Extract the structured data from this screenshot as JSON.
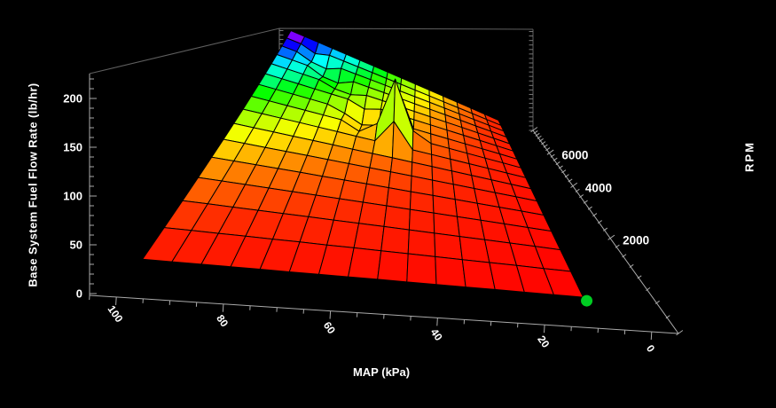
{
  "window": {
    "background": "#000000"
  },
  "chart_data": {
    "type": "surface3d",
    "title": "",
    "x_axis": {
      "label": "MAP (kPa)",
      "major_ticks": [
        100,
        80,
        60,
        40,
        20,
        0
      ],
      "minor_step_kpa": 5,
      "range_kpa": [
        0,
        105
      ]
    },
    "y_axis": {
      "label": "RPM",
      "major_ticks": [
        2000,
        4000,
        6000
      ],
      "minor_step_rpm": 250,
      "range_rpm": [
        0,
        8000
      ]
    },
    "z_axis": {
      "label": "Base System Fuel Flow Rate (lb/hr)",
      "major_ticks": [
        0,
        50,
        100,
        150,
        200
      ],
      "minor_step": 10,
      "range": [
        0,
        225
      ]
    },
    "map_values": [
      10,
      16,
      22,
      28,
      34,
      40,
      46,
      52,
      58,
      64,
      70,
      76,
      82,
      88,
      94,
      100
    ],
    "rpm_values": [
      500,
      1000,
      1500,
      2000,
      2500,
      3000,
      3500,
      4000,
      4500,
      5000,
      5500,
      6000,
      6500,
      7000,
      7500,
      8000
    ],
    "flow_matrix": [
      [
        1.4,
        2.2,
        3.0,
        3.9,
        4.7,
        5.5,
        6.3,
        7.2,
        8.0,
        8.8,
        9.6,
        10.5,
        11.3,
        12.1,
        12.9,
        13.8
      ],
      [
        2.8,
        4.4,
        6.1,
        7.7,
        9.4,
        11.0,
        12.7,
        14.3,
        16.0,
        17.6,
        19.3,
        20.9,
        22.6,
        24.2,
        25.9,
        27.5
      ],
      [
        4.1,
        6.6,
        9.1,
        11.6,
        14.0,
        16.5,
        19.0,
        21.5,
        23.9,
        26.4,
        28.9,
        31.4,
        33.8,
        36.3,
        38.8,
        41.3
      ],
      [
        5.5,
        8.8,
        12.1,
        15.4,
        18.7,
        22.0,
        25.3,
        28.6,
        31.9,
        35.2,
        38.5,
        41.8,
        45.1,
        48.4,
        51.7,
        55.0
      ],
      [
        6.9,
        11.0,
        15.1,
        19.3,
        23.4,
        27.5,
        31.6,
        35.8,
        39.9,
        44.0,
        48.1,
        52.3,
        56.4,
        60.5,
        64.6,
        68.8
      ],
      [
        8.3,
        13.2,
        18.2,
        23.1,
        28.1,
        33.0,
        38.0,
        42.9,
        47.9,
        52.8,
        57.8,
        62.7,
        67.7,
        72.6,
        77.6,
        82.5
      ],
      [
        9.6,
        15.4,
        21.2,
        27.0,
        32.7,
        38.5,
        44.3,
        50.1,
        55.8,
        61.6,
        67.4,
        73.2,
        78.9,
        84.7,
        90.5,
        96.3
      ],
      [
        11.0,
        17.6,
        24.2,
        30.8,
        37.4,
        44.0,
        50.6,
        97.2,
        63.8,
        70.4,
        77.0,
        83.6,
        90.2,
        96.8,
        103.4,
        110.0
      ],
      [
        12.4,
        19.8,
        27.2,
        34.7,
        42.1,
        49.5,
        70.9,
        160.0,
        81.8,
        67.2,
        86.6,
        94.1,
        101.5,
        108.9,
        116.3,
        123.8
      ],
      [
        13.7,
        22.0,
        30.3,
        38.5,
        46.8,
        55.0,
        63.3,
        145.0,
        67.8,
        68.0,
        88.3,
        104.5,
        112.8,
        121.0,
        129.3,
        137.5
      ],
      [
        15.1,
        24.2,
        33.3,
        42.4,
        51.4,
        60.5,
        69.6,
        78.7,
        87.7,
        87.8,
        105.9,
        115.0,
        124.0,
        133.1,
        142.2,
        151.3
      ],
      [
        16.5,
        26.4,
        36.3,
        46.2,
        56.1,
        66.0,
        75.9,
        85.8,
        95.7,
        105.6,
        106.5,
        117.4,
        135.3,
        145.2,
        155.1,
        165.0
      ],
      [
        17.9,
        28.6,
        39.3,
        50.1,
        60.8,
        71.5,
        82.2,
        93.0,
        103.7,
        114.4,
        125.1,
        121.9,
        134.6,
        157.3,
        168.0,
        178.8
      ],
      [
        19.2,
        30.8,
        42.4,
        53.9,
        65.5,
        77.0,
        88.6,
        100.1,
        111.7,
        123.2,
        134.8,
        146.3,
        144.9,
        159.4,
        181.0,
        192.5
      ],
      [
        20.6,
        33.0,
        45.4,
        57.8,
        70.1,
        82.5,
        94.9,
        107.3,
        119.6,
        132.0,
        144.4,
        156.8,
        169.1,
        172.5,
        193.9,
        206.3
      ],
      [
        22.0,
        35.2,
        48.4,
        61.6,
        74.8,
        88.0,
        101.2,
        114.4,
        127.6,
        140.8,
        154.0,
        167.2,
        180.4,
        193.6,
        206.8,
        220.0
      ]
    ],
    "marker": {
      "name": "operating-point",
      "map_kpa": 10,
      "rpm": 500,
      "flow": 1.4,
      "color": "#00cc22"
    },
    "colormap_stops": [
      [
        0,
        0
      ],
      [
        30,
        10
      ],
      [
        55,
        28
      ],
      [
        80,
        55
      ],
      [
        105,
        85
      ],
      [
        125,
        115
      ],
      [
        145,
        155
      ],
      [
        165,
        185
      ],
      [
        185,
        225
      ],
      [
        205,
        265
      ],
      [
        220,
        300
      ]
    ],
    "colors": {
      "mesh_line": "#000000",
      "axis": "#aaaaaa",
      "frame": "#5f5f5f",
      "hidden_edge": "#777777",
      "text": "#ffffff"
    },
    "legend": "none",
    "grid": "mesh-on-surface"
  }
}
